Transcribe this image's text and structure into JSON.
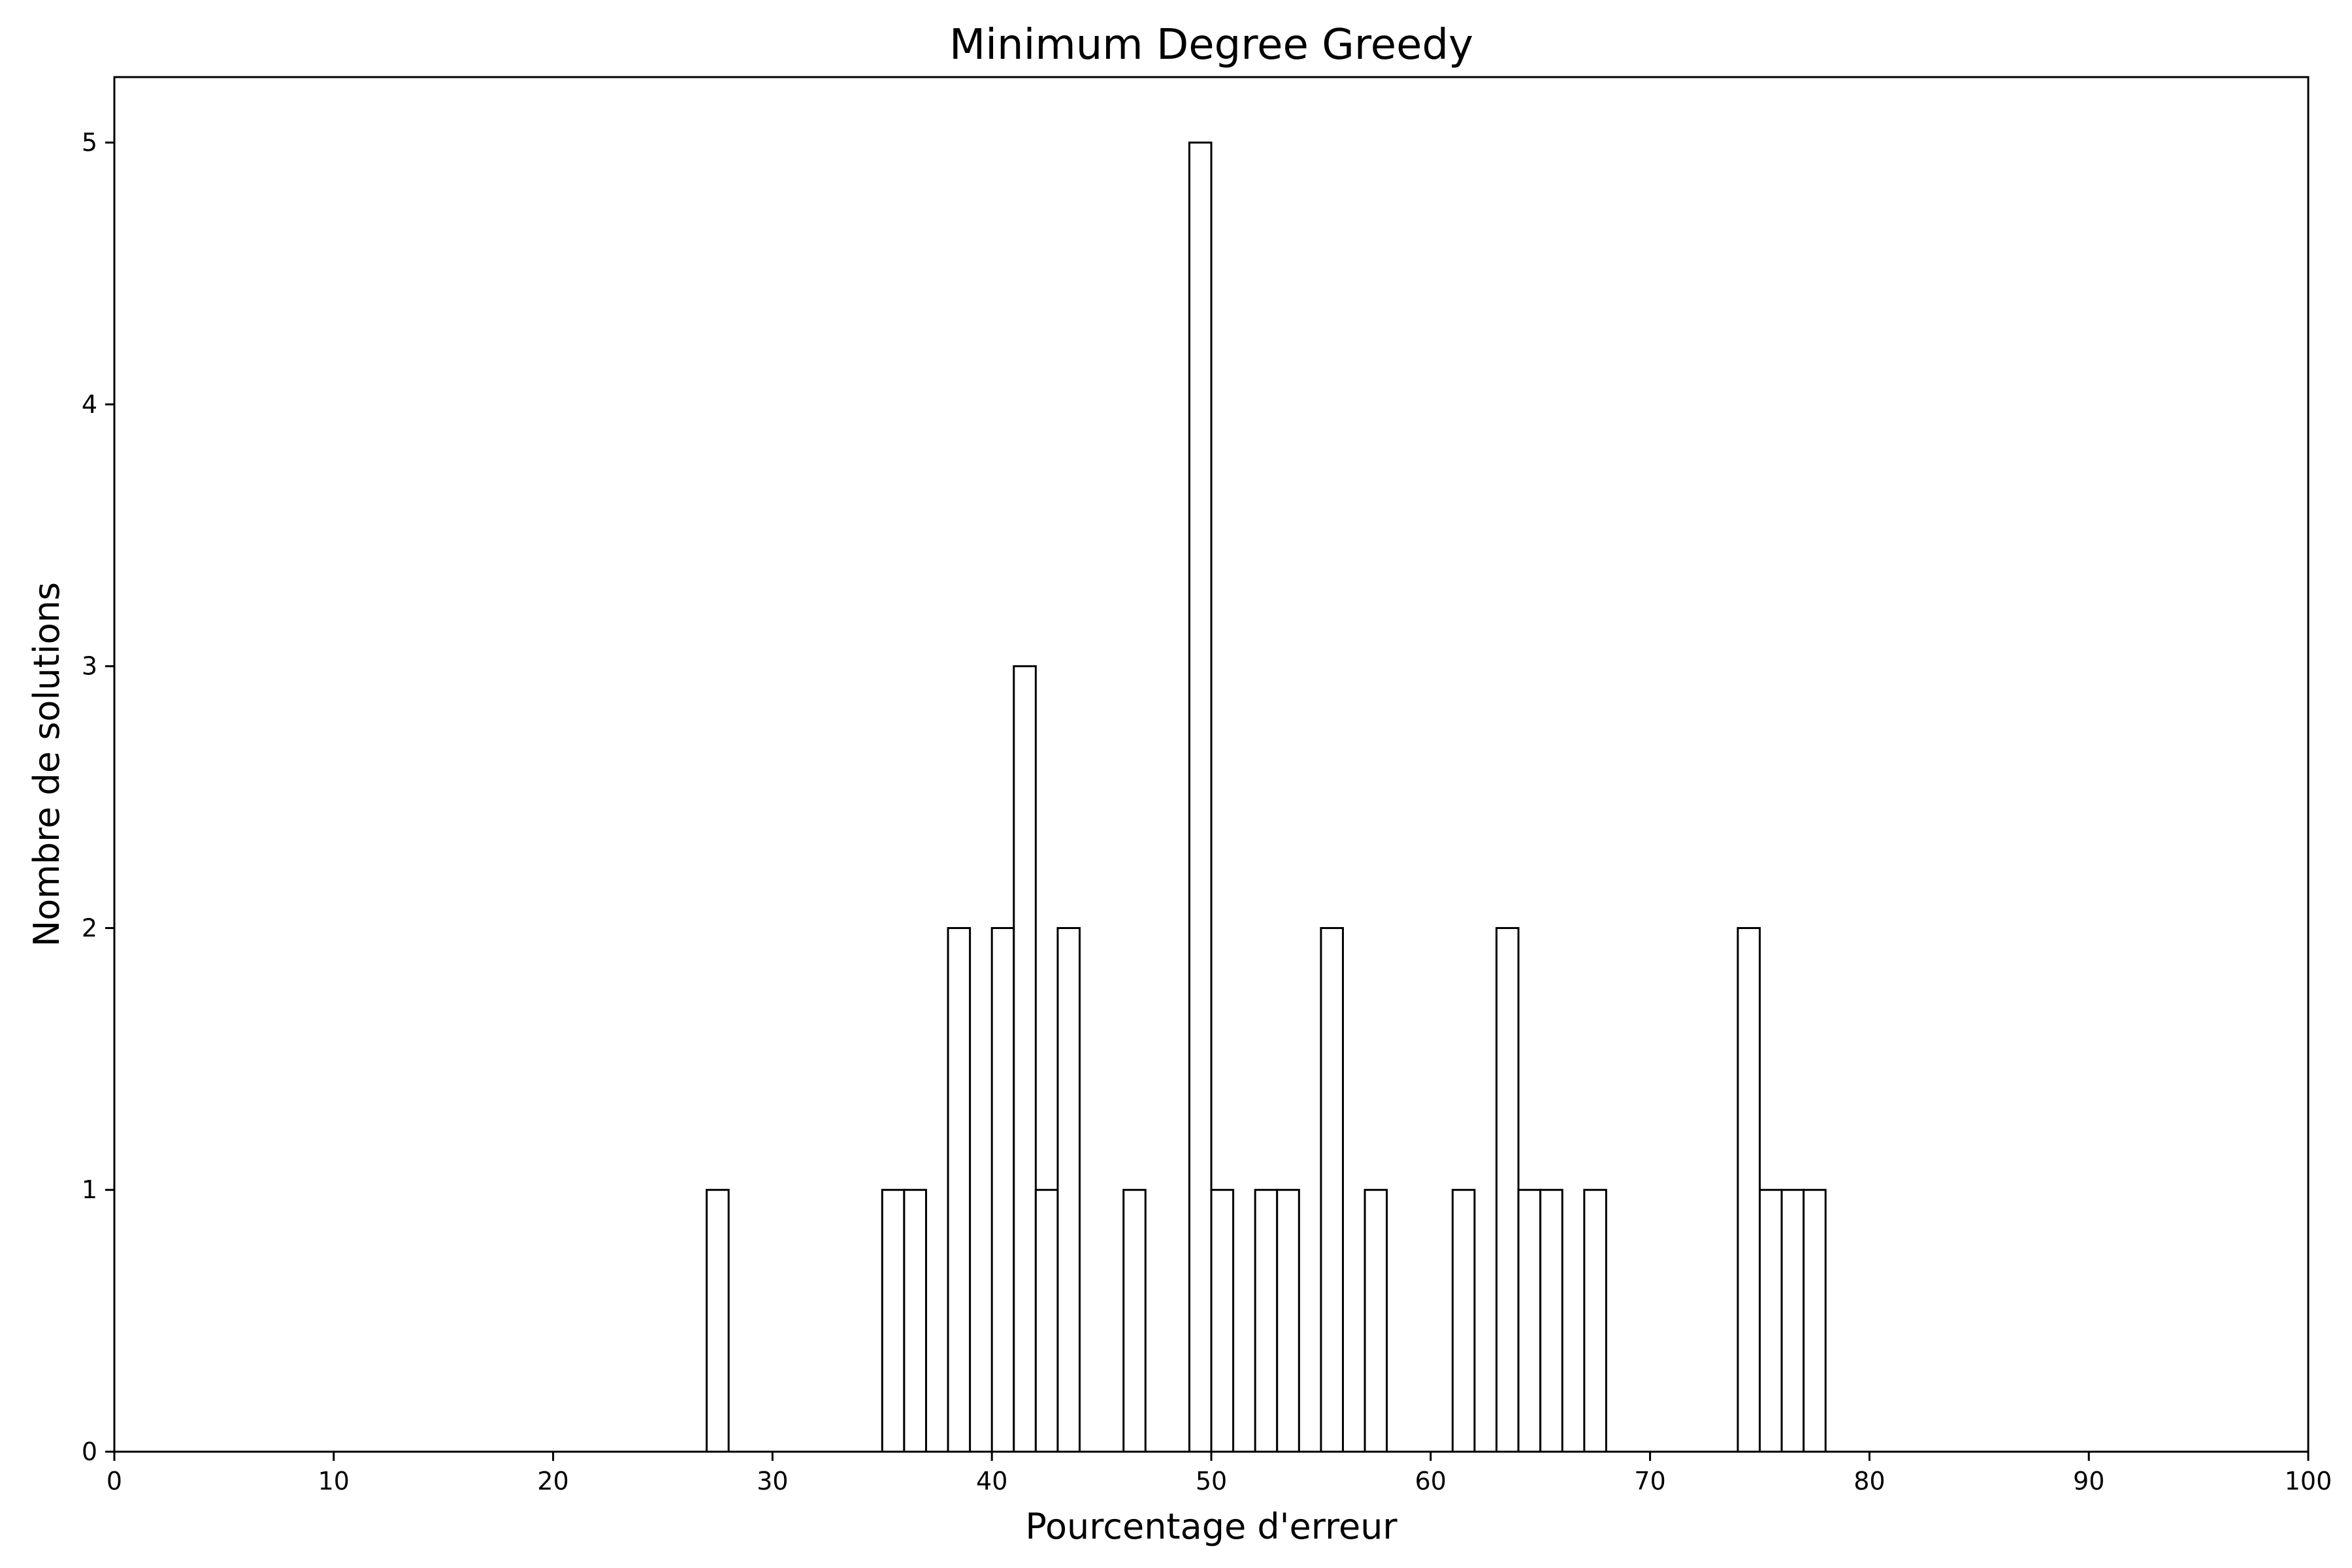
{
  "chart_data": {
    "type": "bar",
    "title": "Minimum Degree Greedy",
    "xlabel": "Pourcentage d'erreur",
    "ylabel": "Nombre de solutions",
    "xlim": [
      0,
      100
    ],
    "ylim": [
      0,
      5.25
    ],
    "xticks": [
      0,
      10,
      20,
      30,
      40,
      50,
      60,
      70,
      80,
      90,
      100
    ],
    "yticks": [
      0,
      1,
      2,
      3,
      4,
      5
    ],
    "grid": false,
    "bin_width": 1,
    "bins": [
      {
        "x": 27.5,
        "count": 1
      },
      {
        "x": 35.5,
        "count": 1
      },
      {
        "x": 36.5,
        "count": 1
      },
      {
        "x": 38.5,
        "count": 2
      },
      {
        "x": 40.5,
        "count": 2
      },
      {
        "x": 41.5,
        "count": 3
      },
      {
        "x": 42.5,
        "count": 1
      },
      {
        "x": 43.5,
        "count": 2
      },
      {
        "x": 46.5,
        "count": 1
      },
      {
        "x": 49.5,
        "count": 5
      },
      {
        "x": 50.5,
        "count": 1
      },
      {
        "x": 52.5,
        "count": 1
      },
      {
        "x": 53.5,
        "count": 1
      },
      {
        "x": 55.5,
        "count": 2
      },
      {
        "x": 57.5,
        "count": 1
      },
      {
        "x": 61.5,
        "count": 1
      },
      {
        "x": 63.5,
        "count": 2
      },
      {
        "x": 64.5,
        "count": 1
      },
      {
        "x": 65.5,
        "count": 1
      },
      {
        "x": 67.5,
        "count": 1
      },
      {
        "x": 74.5,
        "count": 2
      },
      {
        "x": 75.5,
        "count": 1
      },
      {
        "x": 76.5,
        "count": 1
      },
      {
        "x": 77.5,
        "count": 1
      }
    ]
  }
}
